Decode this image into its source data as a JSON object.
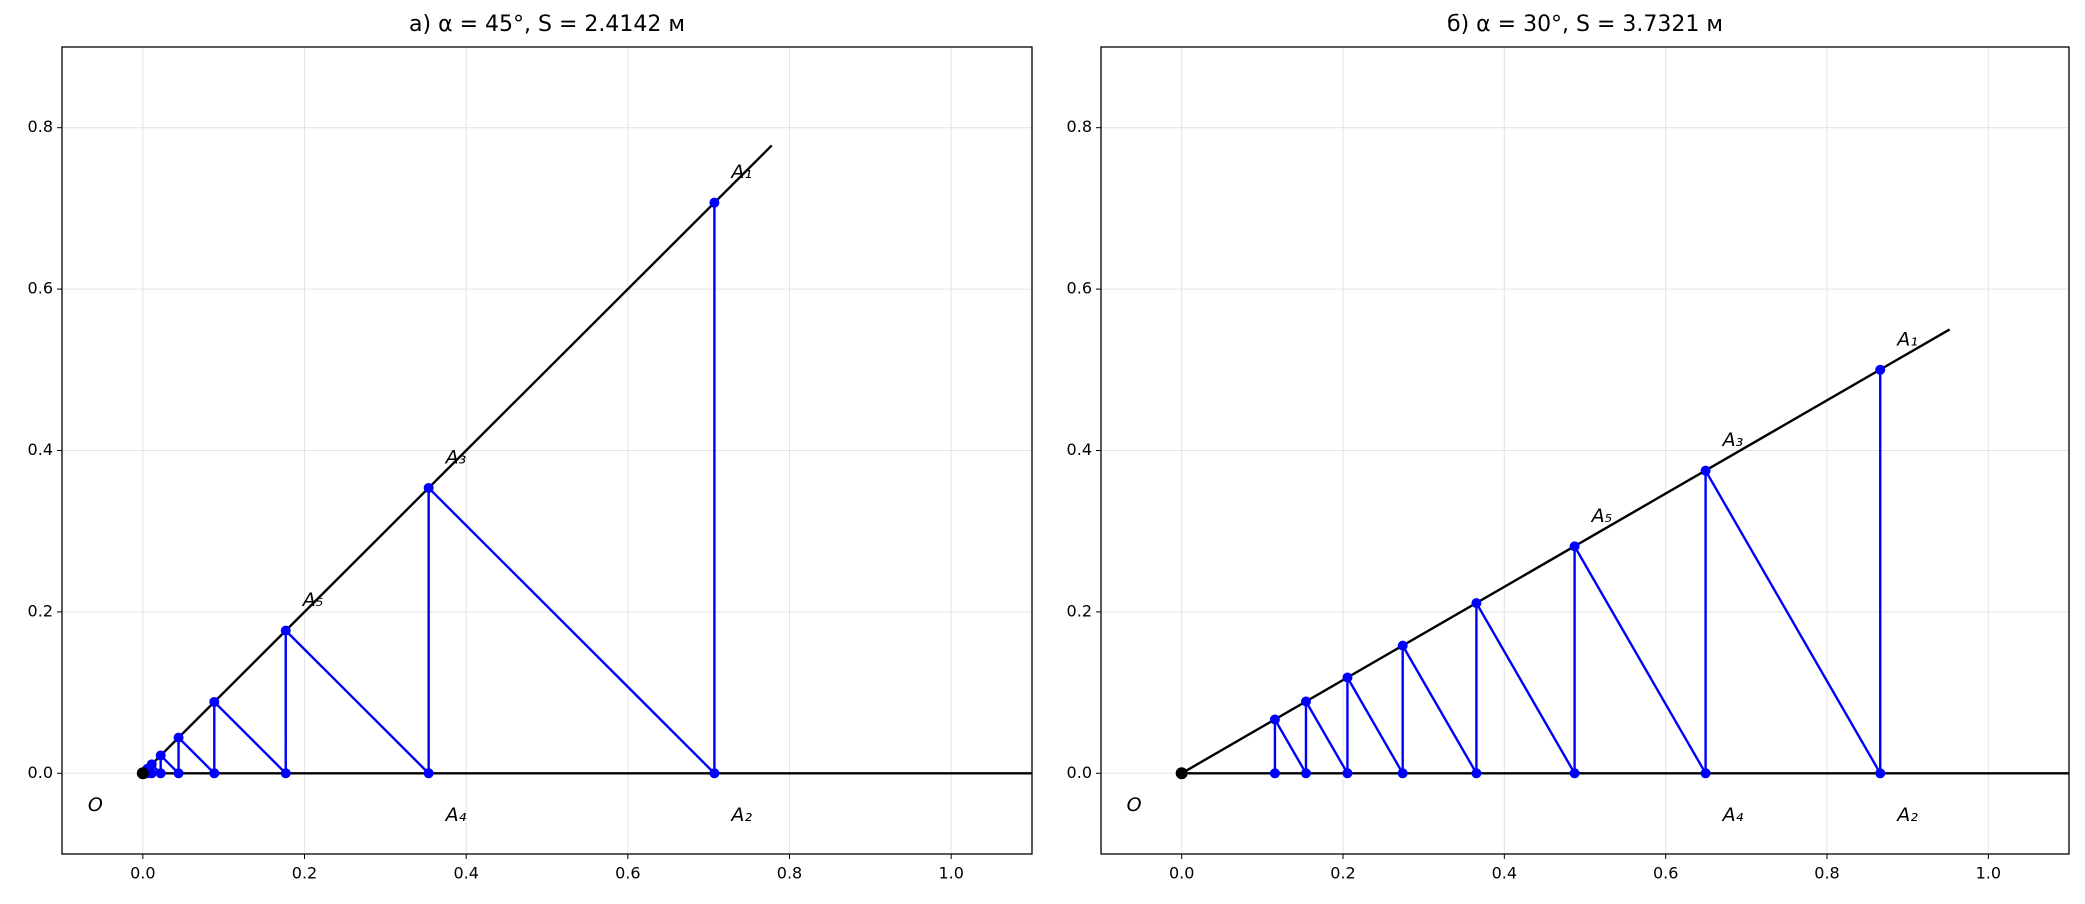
{
  "chart_data": [
    {
      "type": "construction",
      "title": "а) α = 45°,  S = 2.4142 м",
      "xlim": [
        -0.1,
        1.1
      ],
      "ylim": [
        -0.1,
        0.9
      ],
      "grid": true,
      "xticks": [
        {
          "value": 0,
          "label": "0.0"
        },
        0.2,
        0.4,
        0.6,
        0.8,
        {
          "value": 1,
          "label": "1.0"
        }
      ],
      "yticks": [
        {
          "value": 0,
          "label": "0.0"
        },
        0.2,
        0.4,
        0.6,
        0.8
      ],
      "ray": {
        "color": "#000000",
        "x": [
          0,
          0.778
        ],
        "y": [
          0,
          0.778
        ]
      },
      "baseline": {
        "color": "#000000",
        "x": [
          0,
          1.1
        ],
        "y": [
          0,
          0
        ]
      },
      "origin": {
        "label": "O",
        "color": "#000000",
        "x": 0,
        "y": 0
      },
      "zigzag": {
        "color": "#0000ff",
        "x": [
          0.7071,
          0.7071,
          0.3536,
          0.3536,
          0.1768,
          0.1768,
          0.0884,
          0.0884,
          0.0442,
          0.0442,
          0.0221,
          0.0221,
          0.011,
          0.011,
          0.0055,
          0.0055
        ],
        "y": [
          0.7071,
          0,
          0.3536,
          0,
          0.1768,
          0,
          0.0884,
          0,
          0.0442,
          0,
          0.0221,
          0,
          0.011,
          0,
          0.0055,
          0
        ]
      },
      "point_labels": [
        "A₁",
        "A₂",
        "A₃",
        "A₄",
        "A₅"
      ]
    },
    {
      "type": "construction",
      "title": "б) α = 30°,  S = 3.7321 м",
      "xlim": [
        -0.1,
        1.1
      ],
      "ylim": [
        -0.1,
        0.9
      ],
      "grid": true,
      "xticks": [
        {
          "value": 0,
          "label": "0.0"
        },
        0.2,
        0.4,
        0.6,
        0.8,
        {
          "value": 1,
          "label": "1.0"
        }
      ],
      "yticks": [
        {
          "value": 0,
          "label": "0.0"
        },
        0.2,
        0.4,
        0.6,
        0.8
      ],
      "ray": {
        "color": "#000000",
        "x": [
          0,
          0.952
        ],
        "y": [
          0,
          0.55
        ]
      },
      "baseline": {
        "color": "#000000",
        "x": [
          0,
          1.1
        ],
        "y": [
          0,
          0
        ]
      },
      "origin": {
        "label": "O",
        "color": "#000000",
        "x": 0,
        "y": 0
      },
      "zigzag": {
        "color": "#0000ff",
        "x": [
          0.866,
          0.866,
          0.6495,
          0.6495,
          0.4871,
          0.4871,
          0.3654,
          0.3654,
          0.274,
          0.274,
          0.2055,
          0.2055,
          0.1541,
          0.1541,
          0.1156,
          0.1156
        ],
        "y": [
          0.5,
          0,
          0.375,
          0,
          0.2812,
          0,
          0.2109,
          0,
          0.1582,
          0,
          0.1187,
          0,
          0.089,
          0,
          0.0667,
          0
        ]
      },
      "point_labels": [
        "A₁",
        "A₂",
        "A₃",
        "A₄",
        "A₅"
      ]
    }
  ]
}
